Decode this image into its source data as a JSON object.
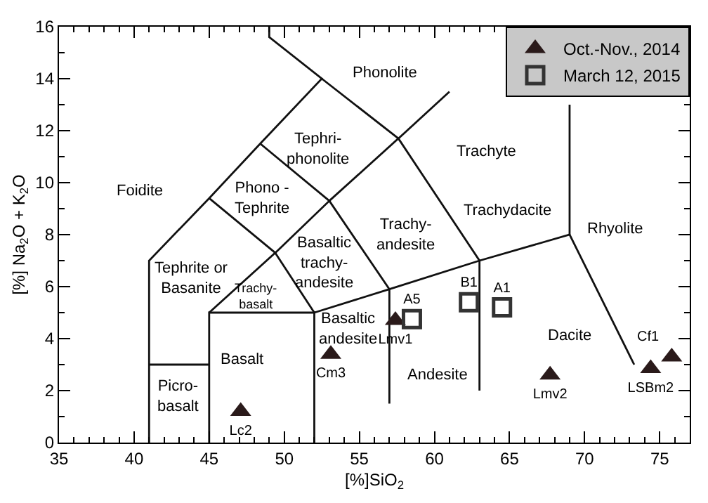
{
  "chart_data": {
    "type": "scatter",
    "xlabel": "[%]SiO$_{2}$",
    "ylabel": "[%] Na$_{2}$O + K$_{2}$O",
    "xlim": [
      35,
      77
    ],
    "ylim": [
      0,
      16
    ],
    "xticks": [
      35,
      40,
      45,
      50,
      55,
      60,
      65,
      70,
      75
    ],
    "yticks": [
      0,
      2,
      4,
      6,
      8,
      10,
      12,
      14,
      16
    ],
    "grid": false,
    "legend": "top right",
    "series": [
      {
        "type": "line",
        "color": "#111111",
        "x": [
          41,
          41,
          45,
          48.4,
          52.5,
          49,
          49
        ],
        "values": [
          0,
          7,
          9.4,
          11.5,
          14,
          15.6,
          16
        ]
      },
      {
        "type": "line",
        "color": "#111111",
        "x": [
          41,
          45
        ],
        "values": [
          3,
          3
        ]
      },
      {
        "type": "line",
        "color": "#111111",
        "x": [
          45,
          45,
          52,
          52
        ],
        "values": [
          0,
          5,
          5,
          0
        ]
      },
      {
        "type": "line",
        "color": "#111111",
        "x": [
          45,
          49.4,
          45
        ],
        "values": [
          5,
          7.3,
          9.4
        ]
      },
      {
        "type": "line",
        "color": "#111111",
        "x": [
          49.4,
          52
        ],
        "values": [
          7.3,
          5
        ]
      },
      {
        "type": "line",
        "color": "#111111",
        "x": [
          49.4,
          53,
          48.4
        ],
        "values": [
          7.3,
          9.3,
          11.5
        ]
      },
      {
        "type": "line",
        "color": "#111111",
        "x": [
          53,
          57.6,
          52.5
        ],
        "values": [
          9.3,
          11.7,
          14
        ]
      },
      {
        "type": "line",
        "color": "#111111",
        "x": [
          52,
          57,
          63,
          69,
          73.3
        ],
        "values": [
          5,
          5.9,
          7,
          8,
          3
        ]
      },
      {
        "type": "line",
        "color": "#111111",
        "x": [
          57,
          57,
          53
        ],
        "values": [
          1.5,
          5.9,
          9.3
        ]
      },
      {
        "type": "line",
        "color": "#111111",
        "x": [
          63,
          63,
          57.6,
          61
        ],
        "values": [
          2,
          7,
          11.7,
          13.5
        ]
      },
      {
        "type": "line",
        "color": "#111111",
        "x": [
          69,
          69
        ],
        "values": [
          8,
          13
        ]
      },
      {
        "name": "Oct.-Nov., 2014",
        "color": "#2a1a1a",
        "marker": "triangle",
        "x": [
          47.1,
          53.1,
          57.4,
          67.7,
          74.4,
          75.8
        ],
        "values": [
          1.2,
          3.4,
          4.7,
          2.6,
          2.85,
          3.3
        ],
        "value_labels": [
          "Lc2",
          "Cm3",
          "Lmv1",
          "Lmv2",
          "LSBm2",
          "Cf1"
        ]
      },
      {
        "name": "March 12, 2015",
        "color": "#333333",
        "marker": "square",
        "x": [
          58.5,
          62.3,
          64.5
        ],
        "values": [
          4.75,
          5.4,
          5.2
        ],
        "value_labels": [
          "A5",
          "B1",
          "A1"
        ]
      }
    ],
    "annotations": [
      "Phonolite",
      "Tephri-\nphonolite",
      "Foidite",
      "Phono -\nTephrite",
      "Tephrite or\nBasanite",
      "Trachy-\nbasalt",
      "Basaltic\ntrachy-\nandesite",
      "Basalt",
      "Picro-\nbasalt",
      "Basaltic\nandesite",
      "Trachy-\nandesite",
      "Trachyte",
      "Trachydacite",
      "Rhyolite",
      "Andesite",
      "Dacite"
    ]
  }
}
